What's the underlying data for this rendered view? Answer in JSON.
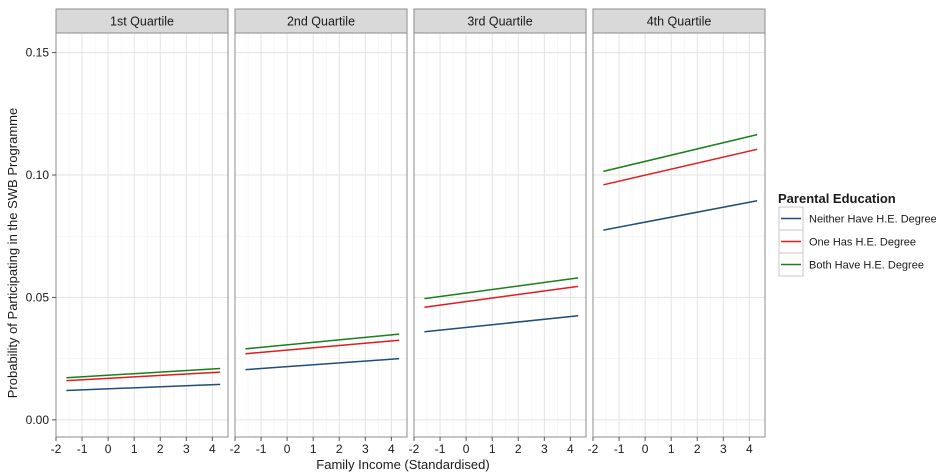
{
  "chart_data": {
    "type": "line",
    "xlabel": "Family Income (Standardised)",
    "ylabel": "Probability of Participating in the SWB Programme",
    "xlim": [
      -2,
      4.6
    ],
    "ylim": [
      -0.007,
      0.158
    ],
    "x_ticks": [
      -2,
      -1,
      0,
      1,
      2,
      3,
      4
    ],
    "x_tick_labels": [
      "-2",
      "-1",
      "0",
      "1",
      "2",
      "3",
      "4"
    ],
    "y_ticks": [
      0,
      0.05,
      0.1,
      0.15
    ],
    "y_tick_labels": [
      "0.00",
      "0.05",
      "0.10",
      "0.15"
    ],
    "grid": true,
    "legend": {
      "title": "Parental Education",
      "position": "right",
      "entries": [
        "Neither Have H.E. Degree",
        "One Has H.E. Degree",
        "Both Have H.E. Degree"
      ]
    },
    "series_colors": [
      "#1f4e79",
      "#e41a1c",
      "#1a7f1a"
    ],
    "panels": [
      {
        "title": "1st Quartile",
        "series": [
          {
            "name": "Neither Have H.E. Degree",
            "x": [
              -1.6,
              4.3
            ],
            "y": [
              0.012,
              0.0145
            ]
          },
          {
            "name": "One Has H.E. Degree",
            "x": [
              -1.6,
              4.3
            ],
            "y": [
              0.016,
              0.0195
            ]
          },
          {
            "name": "Both Have H.E. Degree",
            "x": [
              -1.6,
              4.3
            ],
            "y": [
              0.0172,
              0.021
            ]
          }
        ]
      },
      {
        "title": "2nd Quartile",
        "series": [
          {
            "name": "Neither Have H.E. Degree",
            "x": [
              -1.6,
              4.3
            ],
            "y": [
              0.0205,
              0.025
            ]
          },
          {
            "name": "One Has H.E. Degree",
            "x": [
              -1.6,
              4.3
            ],
            "y": [
              0.027,
              0.0325
            ]
          },
          {
            "name": "Both Have H.E. Degree",
            "x": [
              -1.6,
              4.3
            ],
            "y": [
              0.029,
              0.035
            ]
          }
        ]
      },
      {
        "title": "3rd Quartile",
        "series": [
          {
            "name": "Neither Have H.E. Degree",
            "x": [
              -1.6,
              4.3
            ],
            "y": [
              0.036,
              0.0425
            ]
          },
          {
            "name": "One Has H.E. Degree",
            "x": [
              -1.6,
              4.3
            ],
            "y": [
              0.046,
              0.0545
            ]
          },
          {
            "name": "Both Have H.E. Degree",
            "x": [
              -1.6,
              4.3
            ],
            "y": [
              0.0495,
              0.058
            ]
          }
        ]
      },
      {
        "title": "4th Quartile",
        "series": [
          {
            "name": "Neither Have H.E. Degree",
            "x": [
              -1.6,
              4.3
            ],
            "y": [
              0.0775,
              0.0895
            ]
          },
          {
            "name": "One Has H.E. Degree",
            "x": [
              -1.6,
              4.3
            ],
            "y": [
              0.096,
              0.1105
            ]
          },
          {
            "name": "Both Have H.E. Degree",
            "x": [
              -1.6,
              4.3
            ],
            "y": [
              0.1015,
              0.1165
            ]
          }
        ]
      }
    ]
  }
}
